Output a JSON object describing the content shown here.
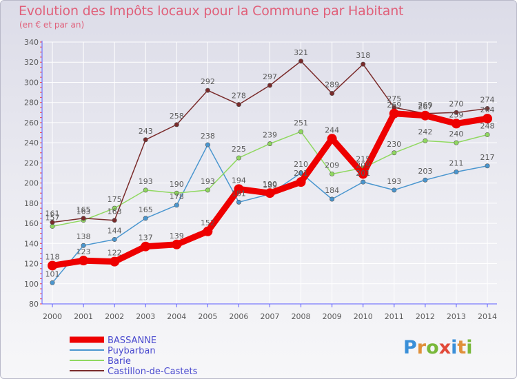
{
  "title": "Evolution des Impôts locaux pour la Commune par Habitant",
  "subtitle": "(en € et par an)",
  "logo": {
    "brand": "Proxiti"
  },
  "colors": {
    "background_top": "#dcdce8",
    "axis": "#5b5bff",
    "grid": "#ffffff",
    "text": "#5a5a5a",
    "title": "#e0607a"
  },
  "chart_data": {
    "type": "line",
    "title": "Evolution des Impôts locaux pour la Commune par Habitant",
    "subtitle": "(en € et par an)",
    "xlabel": "",
    "ylabel": "",
    "ylim": [
      80,
      340
    ],
    "yticks": [
      80,
      100,
      120,
      140,
      160,
      180,
      200,
      220,
      240,
      260,
      280,
      300,
      320,
      340
    ],
    "categories": [
      "2000",
      "2001",
      "2002",
      "2003",
      "2004",
      "2005",
      "2006",
      "2007",
      "2008",
      "2009",
      "2010",
      "2011",
      "2012",
      "2013",
      "2014"
    ],
    "legend_position": "bottom-left",
    "grid": true,
    "series": [
      {
        "name": "BASSANNE",
        "color": "#ee0000",
        "highlight": true,
        "values": [
          118,
          123,
          122,
          137,
          139,
          152,
          194,
          190,
          201,
          244,
          209,
          269,
          267,
          259,
          264
        ]
      },
      {
        "name": "Puybarban",
        "color": "#4a96cf",
        "values": [
          101,
          138,
          144,
          165,
          178,
          238,
          181,
          189,
          210,
          184,
          201,
          193,
          203,
          211,
          217
        ]
      },
      {
        "name": "Barie",
        "color": "#90d860",
        "values": [
          157,
          163,
          175,
          193,
          190,
          193,
          225,
          239,
          251,
          209,
          215,
          230,
          242,
          240,
          248
        ]
      },
      {
        "name": "Castillon-de-Castets",
        "color": "#7a2b2b",
        "values": [
          161,
          165,
          163,
          243,
          258,
          292,
          278,
          297,
          321,
          289,
          318,
          275,
          269,
          270,
          274
        ]
      }
    ]
  }
}
